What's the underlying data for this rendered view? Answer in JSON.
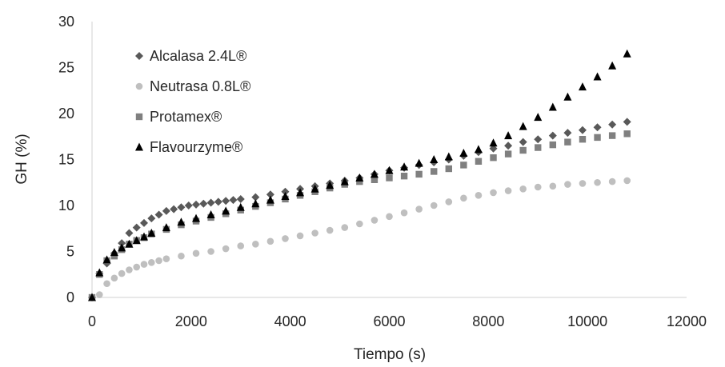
{
  "chart_data": {
    "type": "scatter",
    "title": "",
    "xlabel": "Tiempo (s)",
    "ylabel": "GH (%)",
    "xlim": [
      0,
      12000
    ],
    "ylim": [
      0,
      30
    ],
    "x_ticks": [
      "0",
      "2000",
      "4000",
      "6000",
      "8000",
      "10000",
      "12000"
    ],
    "y_ticks": [
      "0",
      "5",
      "10",
      "15",
      "20",
      "25",
      "30"
    ],
    "grid": false,
    "legend_position": "top-left",
    "series": [
      {
        "name": "Alcalasa 2.4L®",
        "marker": "diamond",
        "color": "#595959",
        "points": [
          [
            0,
            0
          ],
          [
            150,
            2.6
          ],
          [
            300,
            3.7
          ],
          [
            450,
            4.8
          ],
          [
            600,
            5.9
          ],
          [
            750,
            7.0
          ],
          [
            900,
            7.6
          ],
          [
            1050,
            8.1
          ],
          [
            1200,
            8.6
          ],
          [
            1350,
            9.0
          ],
          [
            1500,
            9.4
          ],
          [
            1650,
            9.6
          ],
          [
            1800,
            9.8
          ],
          [
            1950,
            10.0
          ],
          [
            2100,
            10.1
          ],
          [
            2250,
            10.2
          ],
          [
            2400,
            10.3
          ],
          [
            2550,
            10.4
          ],
          [
            2700,
            10.5
          ],
          [
            2850,
            10.6
          ],
          [
            3000,
            10.7
          ],
          [
            3300,
            10.9
          ],
          [
            3600,
            11.2
          ],
          [
            3900,
            11.5
          ],
          [
            4200,
            11.8
          ],
          [
            4500,
            12.1
          ],
          [
            4800,
            12.4
          ],
          [
            5100,
            12.7
          ],
          [
            5400,
            13.0
          ],
          [
            5700,
            13.4
          ],
          [
            6000,
            13.8
          ],
          [
            6300,
            14.1
          ],
          [
            6600,
            14.4
          ],
          [
            6900,
            14.7
          ],
          [
            7200,
            15.0
          ],
          [
            7500,
            15.4
          ],
          [
            7800,
            15.8
          ],
          [
            8100,
            16.2
          ],
          [
            8400,
            16.5
          ],
          [
            8700,
            16.9
          ],
          [
            9000,
            17.2
          ],
          [
            9300,
            17.6
          ],
          [
            9600,
            17.9
          ],
          [
            9900,
            18.2
          ],
          [
            10200,
            18.5
          ],
          [
            10500,
            18.8
          ],
          [
            10800,
            19.1
          ]
        ]
      },
      {
        "name": "Neutrasa 0.8L®",
        "marker": "circle",
        "color": "#bfbfbf",
        "points": [
          [
            0,
            0
          ],
          [
            150,
            0.3
          ],
          [
            300,
            1.5
          ],
          [
            450,
            2.1
          ],
          [
            600,
            2.6
          ],
          [
            750,
            3.0
          ],
          [
            900,
            3.3
          ],
          [
            1050,
            3.6
          ],
          [
            1200,
            3.8
          ],
          [
            1350,
            4.0
          ],
          [
            1500,
            4.2
          ],
          [
            1800,
            4.5
          ],
          [
            2100,
            4.8
          ],
          [
            2400,
            5.0
          ],
          [
            2700,
            5.3
          ],
          [
            3000,
            5.6
          ],
          [
            3300,
            5.8
          ],
          [
            3600,
            6.1
          ],
          [
            3900,
            6.4
          ],
          [
            4200,
            6.7
          ],
          [
            4500,
            7.0
          ],
          [
            4800,
            7.3
          ],
          [
            5100,
            7.6
          ],
          [
            5400,
            8.0
          ],
          [
            5700,
            8.4
          ],
          [
            6000,
            8.8
          ],
          [
            6300,
            9.2
          ],
          [
            6600,
            9.6
          ],
          [
            6900,
            10.0
          ],
          [
            7200,
            10.4
          ],
          [
            7500,
            10.8
          ],
          [
            7800,
            11.1
          ],
          [
            8100,
            11.4
          ],
          [
            8400,
            11.6
          ],
          [
            8700,
            11.8
          ],
          [
            9000,
            12.0
          ],
          [
            9300,
            12.1
          ],
          [
            9600,
            12.3
          ],
          [
            9900,
            12.4
          ],
          [
            10200,
            12.5
          ],
          [
            10500,
            12.6
          ],
          [
            10800,
            12.7
          ]
        ]
      },
      {
        "name": "Protamex®",
        "marker": "square",
        "color": "#808080",
        "points": [
          [
            0,
            0
          ],
          [
            150,
            2.5
          ],
          [
            300,
            4.0
          ],
          [
            450,
            4.5
          ],
          [
            600,
            5.2
          ],
          [
            750,
            5.8
          ],
          [
            900,
            6.2
          ],
          [
            1050,
            6.5
          ],
          [
            1200,
            6.9
          ],
          [
            1500,
            7.4
          ],
          [
            1800,
            7.9
          ],
          [
            2100,
            8.3
          ],
          [
            2400,
            8.7
          ],
          [
            2700,
            9.1
          ],
          [
            3000,
            9.5
          ],
          [
            3300,
            9.9
          ],
          [
            3600,
            10.3
          ],
          [
            3900,
            10.7
          ],
          [
            4200,
            11.1
          ],
          [
            4500,
            11.5
          ],
          [
            4800,
            11.9
          ],
          [
            5100,
            12.3
          ],
          [
            5400,
            12.6
          ],
          [
            5700,
            12.8
          ],
          [
            6000,
            13.0
          ],
          [
            6300,
            13.2
          ],
          [
            6600,
            13.4
          ],
          [
            6900,
            13.7
          ],
          [
            7200,
            14.0
          ],
          [
            7500,
            14.4
          ],
          [
            7800,
            14.8
          ],
          [
            8100,
            15.2
          ],
          [
            8400,
            15.6
          ],
          [
            8700,
            16.0
          ],
          [
            9000,
            16.3
          ],
          [
            9300,
            16.6
          ],
          [
            9600,
            16.9
          ],
          [
            9900,
            17.2
          ],
          [
            10200,
            17.4
          ],
          [
            10500,
            17.6
          ],
          [
            10800,
            17.8
          ]
        ]
      },
      {
        "name": "Flavourzyme®",
        "marker": "triangle",
        "color": "#000000",
        "points": [
          [
            0,
            0
          ],
          [
            150,
            2.7
          ],
          [
            300,
            4.1
          ],
          [
            450,
            4.9
          ],
          [
            600,
            5.4
          ],
          [
            750,
            5.8
          ],
          [
            900,
            6.2
          ],
          [
            1050,
            6.6
          ],
          [
            1200,
            7.0
          ],
          [
            1500,
            7.6
          ],
          [
            1800,
            8.2
          ],
          [
            2100,
            8.6
          ],
          [
            2400,
            9.0
          ],
          [
            2700,
            9.4
          ],
          [
            3000,
            9.8
          ],
          [
            3300,
            10.2
          ],
          [
            3600,
            10.6
          ],
          [
            3900,
            11.0
          ],
          [
            4200,
            11.4
          ],
          [
            4500,
            11.8
          ],
          [
            4800,
            12.2
          ],
          [
            5100,
            12.6
          ],
          [
            5400,
            13.0
          ],
          [
            5700,
            13.4
          ],
          [
            6000,
            13.8
          ],
          [
            6300,
            14.2
          ],
          [
            6600,
            14.6
          ],
          [
            6900,
            15.0
          ],
          [
            7200,
            15.3
          ],
          [
            7500,
            15.7
          ],
          [
            7800,
            16.1
          ],
          [
            8100,
            16.8
          ],
          [
            8400,
            17.6
          ],
          [
            8700,
            18.6
          ],
          [
            9000,
            19.6
          ],
          [
            9300,
            20.7
          ],
          [
            9600,
            21.8
          ],
          [
            9900,
            22.9
          ],
          [
            10200,
            24.0
          ],
          [
            10500,
            25.2
          ],
          [
            10800,
            26.5
          ]
        ]
      }
    ]
  }
}
